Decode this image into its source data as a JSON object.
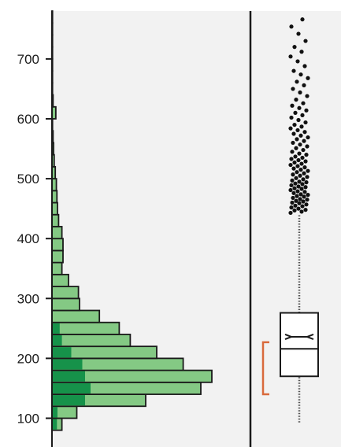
{
  "chart_data": {
    "type": "histogram",
    "orientation": "horizontal",
    "title": "",
    "xlabel": "",
    "ylabel": "",
    "ylim": [
      52,
      780
    ],
    "y_ticks": [
      100,
      200,
      300,
      400,
      500,
      600,
      700
    ],
    "y_tick_labels": [
      "100",
      "200",
      "300",
      "400",
      "500",
      "600",
      "700"
    ],
    "grid": false,
    "legend": "none",
    "colors": {
      "panel_bg": "#f2f2f2",
      "bar_light": "#84c984",
      "bar_dark": "#16924a",
      "bar_edge": "#1a1a1a",
      "bracket": "#d96a3c",
      "box_edge": "#1a1a1a",
      "outlier": "#111111",
      "axis": "#1a1a1a"
    },
    "histogram": {
      "bin_width": 20,
      "bins": [
        {
          "y0": 80,
          "y1": 100,
          "count": 18,
          "highlight": 9
        },
        {
          "y0": 100,
          "y1": 120,
          "count": 45,
          "highlight": 10
        },
        {
          "y0": 120,
          "y1": 140,
          "count": 170,
          "highlight": 60
        },
        {
          "y0": 140,
          "y1": 160,
          "count": 270,
          "highlight": 70
        },
        {
          "y0": 160,
          "y1": 180,
          "count": 290,
          "highlight": 60
        },
        {
          "y0": 180,
          "y1": 200,
          "count": 238,
          "highlight": 55
        },
        {
          "y0": 200,
          "y1": 220,
          "count": 190,
          "highlight": 35
        },
        {
          "y0": 220,
          "y1": 240,
          "count": 142,
          "highlight": 18
        },
        {
          "y0": 240,
          "y1": 260,
          "count": 122,
          "highlight": 14
        },
        {
          "y0": 260,
          "y1": 280,
          "count": 86,
          "highlight": 0
        },
        {
          "y0": 280,
          "y1": 300,
          "count": 50,
          "highlight": 0
        },
        {
          "y0": 300,
          "y1": 320,
          "count": 48,
          "highlight": 0
        },
        {
          "y0": 320,
          "y1": 340,
          "count": 30,
          "highlight": 0
        },
        {
          "y0": 340,
          "y1": 360,
          "count": 18,
          "highlight": 0
        },
        {
          "y0": 360,
          "y1": 380,
          "count": 20,
          "highlight": 0
        },
        {
          "y0": 380,
          "y1": 400,
          "count": 20,
          "highlight": 0
        },
        {
          "y0": 400,
          "y1": 420,
          "count": 18,
          "highlight": 0
        },
        {
          "y0": 420,
          "y1": 440,
          "count": 12,
          "highlight": 0
        },
        {
          "y0": 440,
          "y1": 460,
          "count": 10,
          "highlight": 0
        },
        {
          "y0": 460,
          "y1": 480,
          "count": 9,
          "highlight": 0
        },
        {
          "y0": 480,
          "y1": 500,
          "count": 8,
          "highlight": 0
        },
        {
          "y0": 500,
          "y1": 520,
          "count": 6,
          "highlight": 0
        },
        {
          "y0": 520,
          "y1": 540,
          "count": 4,
          "highlight": 0
        },
        {
          "y0": 540,
          "y1": 560,
          "count": 3,
          "highlight": 0
        },
        {
          "y0": 560,
          "y1": 580,
          "count": 2,
          "highlight": 0
        },
        {
          "y0": 580,
          "y1": 600,
          "count": 1,
          "highlight": 0
        },
        {
          "y0": 600,
          "y1": 620,
          "count": 7,
          "highlight": 0
        },
        {
          "y0": 620,
          "y1": 640,
          "count": 2,
          "highlight": 0
        },
        {
          "y0": 640,
          "y1": 660,
          "count": 1,
          "highlight": 0
        },
        {
          "y0": 660,
          "y1": 680,
          "count": 1,
          "highlight": 0
        },
        {
          "y0": 680,
          "y1": 700,
          "count": 1,
          "highlight": 0
        },
        {
          "y0": 700,
          "y1": 720,
          "count": 1,
          "highlight": 0
        },
        {
          "y0": 720,
          "y1": 740,
          "count": 1,
          "highlight": 0
        },
        {
          "y0": 740,
          "y1": 760,
          "count": 1,
          "highlight": 0
        },
        {
          "y0": 760,
          "y1": 780,
          "count": 1,
          "highlight": 0
        }
      ]
    },
    "boxplot": {
      "whisker_low": 93,
      "q1": 170,
      "median": 216,
      "q3": 276,
      "notch_low": 232,
      "notch_high": 240,
      "mean": 236,
      "whisker_high": 440
    },
    "bracket": {
      "low": 140,
      "high": 227
    },
    "outliers": [
      443,
      445,
      447,
      448,
      450,
      452,
      454,
      455,
      457,
      459,
      460,
      462,
      463,
      465,
      466,
      468,
      470,
      471,
      473,
      474,
      476,
      478,
      479,
      481,
      483,
      484,
      486,
      487,
      489,
      491,
      492,
      494,
      495,
      497,
      499,
      501,
      503,
      505,
      507,
      509,
      511,
      513,
      515,
      517,
      519,
      521,
      523,
      525,
      527,
      529,
      531,
      533,
      535,
      537,
      540,
      542,
      545,
      548,
      551,
      554,
      557,
      560,
      563,
      566,
      569,
      572,
      575,
      578,
      581,
      584,
      587,
      590,
      594,
      598,
      602,
      606,
      610,
      614,
      618,
      622,
      626,
      632,
      638,
      644,
      650,
      656,
      662,
      668,
      674,
      680,
      688,
      696,
      704,
      712,
      720,
      730,
      742,
      754,
      766
    ]
  }
}
